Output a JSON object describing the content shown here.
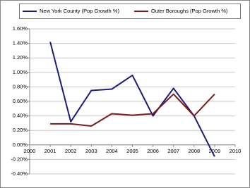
{
  "chart_data": {
    "type": "line",
    "x": [
      2001,
      2002,
      2003,
      2004,
      2005,
      2006,
      2007,
      2008,
      2009
    ],
    "series": [
      {
        "name": "New York County (Pop Growth %)",
        "color": "#1c1c78",
        "values": [
          1.42,
          0.32,
          0.75,
          0.77,
          0.96,
          0.4,
          0.78,
          0.4,
          -0.16
        ]
      },
      {
        "name": "Outer Boroughs (Pop Growth %)",
        "color": "#7a1a1a",
        "values": [
          0.29,
          0.29,
          0.26,
          0.43,
          0.41,
          0.43,
          0.7,
          0.4,
          0.7
        ]
      }
    ],
    "xlim": [
      2000,
      2010
    ],
    "xticks": [
      2000,
      2001,
      2002,
      2003,
      2004,
      2005,
      2006,
      2007,
      2008,
      2009,
      2010
    ],
    "ylim": [
      -0.4,
      1.6
    ],
    "yticks": [
      {
        "value": -0.4,
        "label": "-0.40%"
      },
      {
        "value": -0.2,
        "label": "-0.20%"
      },
      {
        "value": 0,
        "label": "0.00%"
      },
      {
        "value": 0.2,
        "label": "0.20%"
      },
      {
        "value": 0.4,
        "label": "0.40%"
      },
      {
        "value": 0.6,
        "label": "0.60%"
      },
      {
        "value": 0.8,
        "label": "0.80%"
      },
      {
        "value": 1.0,
        "label": "1.00%"
      },
      {
        "value": 1.2,
        "label": "1.20%"
      },
      {
        "value": 1.4,
        "label": "1.40%"
      },
      {
        "value": 1.6,
        "label": "1.60%"
      }
    ],
    "grid": true
  }
}
